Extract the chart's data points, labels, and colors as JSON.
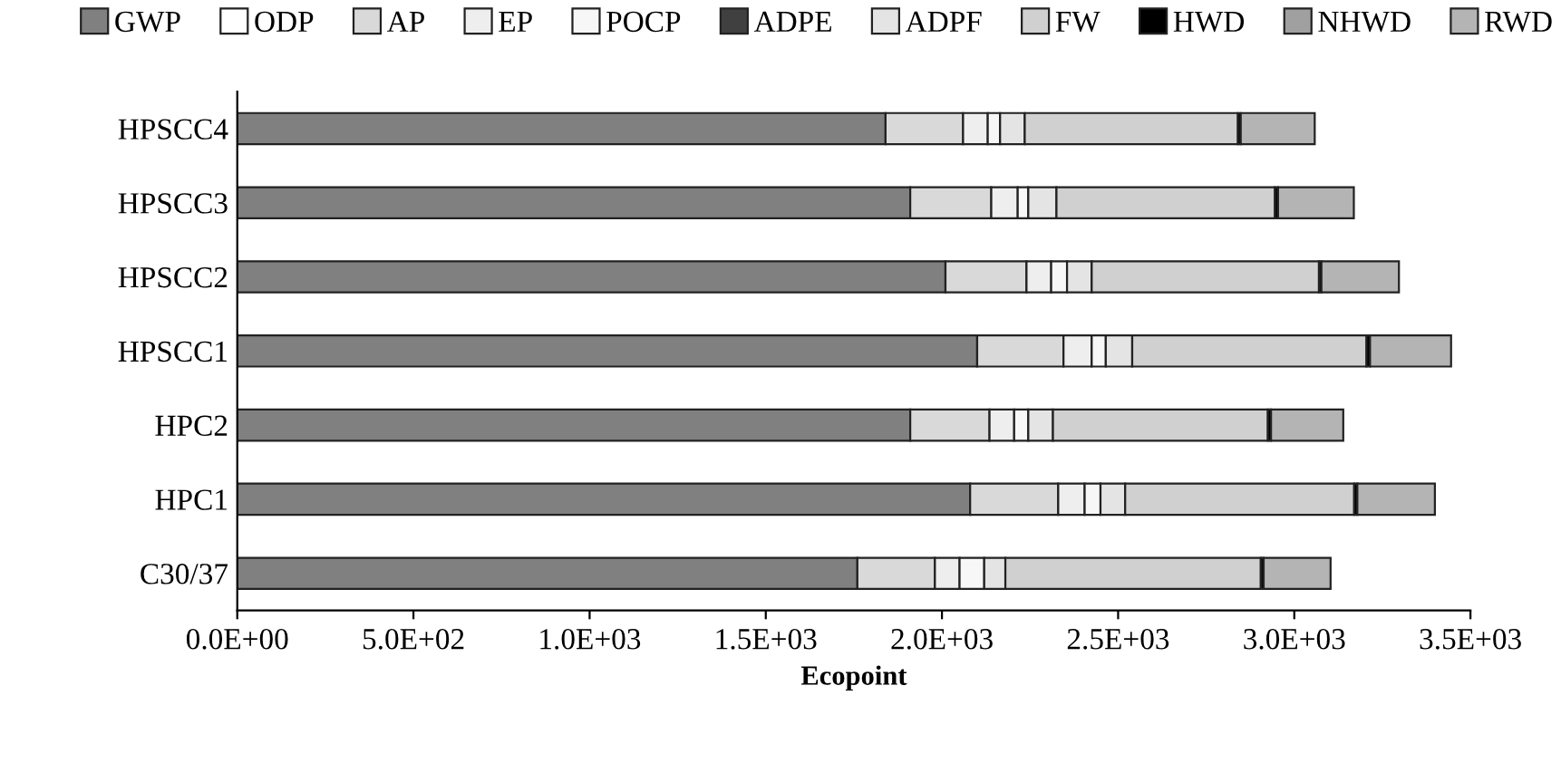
{
  "chart_data": {
    "type": "bar",
    "orientation": "horizontal",
    "stacked": true,
    "xlabel": "Ecopoint",
    "categories": [
      "HPSCC4",
      "HPSCC3",
      "HPSCC2",
      "HPSCC1",
      "HPC2",
      "HPC1",
      "C30/37"
    ],
    "series": [
      {
        "name": "GWP",
        "color": "#808080",
        "values": [
          1840,
          1910,
          2010,
          2100,
          1910,
          2080,
          1760
        ]
      },
      {
        "name": "ODP",
        "color": "#ffffff",
        "values": [
          0,
          0,
          0,
          0,
          0,
          0,
          0
        ]
      },
      {
        "name": "AP",
        "color": "#d9d9d9",
        "values": [
          220,
          230,
          230,
          245,
          225,
          250,
          220
        ]
      },
      {
        "name": "EP",
        "color": "#eeeeee",
        "values": [
          70,
          75,
          70,
          80,
          70,
          75,
          70
        ]
      },
      {
        "name": "POCP",
        "color": "#f7f7f7",
        "values": [
          35,
          30,
          45,
          40,
          40,
          45,
          70
        ]
      },
      {
        "name": "ADPE",
        "color": "#404040",
        "values": [
          0,
          0,
          0,
          0,
          0,
          0,
          0
        ]
      },
      {
        "name": "ADPF",
        "color": "#e4e4e4",
        "values": [
          70,
          80,
          70,
          75,
          70,
          70,
          60
        ]
      },
      {
        "name": "FW",
        "color": "#d0d0d0",
        "values": [
          605,
          620,
          645,
          665,
          610,
          650,
          725
        ]
      },
      {
        "name": "HWD",
        "color": "#000000",
        "values": [
          8,
          9,
          7,
          10,
          9,
          9,
          8
        ]
      },
      {
        "name": "NHWD",
        "color": "#a0a0a0",
        "values": [
          0,
          0,
          0,
          0,
          0,
          0,
          0
        ]
      },
      {
        "name": "RWD",
        "color": "#b4b4b4",
        "values": [
          210,
          215,
          220,
          230,
          205,
          220,
          190
        ]
      }
    ],
    "xlim": [
      0,
      3500
    ],
    "xticks": [
      {
        "value": 0,
        "label": "0.0E+00"
      },
      {
        "value": 500,
        "label": "5.0E+02"
      },
      {
        "value": 1000,
        "label": "1.0E+03"
      },
      {
        "value": 1500,
        "label": "1.5E+03"
      },
      {
        "value": 2000,
        "label": "2.0E+03"
      },
      {
        "value": 2500,
        "label": "2.5E+03"
      },
      {
        "value": 3000,
        "label": "3.0E+03"
      },
      {
        "value": 3500,
        "label": "3.5E+03"
      }
    ],
    "legend": "top",
    "grid": false
  }
}
